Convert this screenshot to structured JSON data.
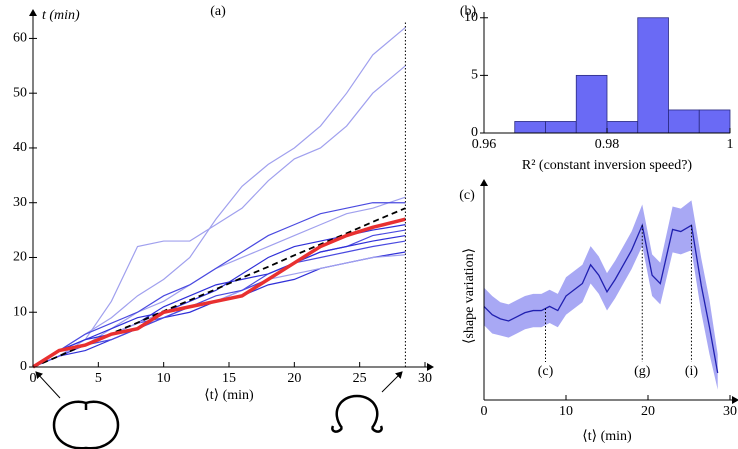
{
  "chart_data": [
    {
      "type": "line",
      "panel_label": "(a)",
      "ylabel": "t (min)",
      "xlabel": "⟨t⟩ (min)",
      "x": [
        0,
        2,
        4,
        6,
        8,
        10,
        12,
        14,
        16,
        18,
        20,
        22,
        24,
        26,
        28.5
      ],
      "series": [
        {
          "color": "#a0a0ee",
          "line_width": 1.2,
          "values": [
            0,
            3,
            6,
            9,
            13,
            16,
            20,
            27,
            33,
            37,
            40,
            44,
            50,
            57,
            62
          ]
        },
        {
          "color": "#a0a0ee",
          "line_width": 1.2,
          "values": [
            0,
            2,
            5,
            12,
            22,
            23,
            23,
            26,
            29,
            34,
            38,
            40,
            44,
            50,
            55
          ]
        },
        {
          "color": "#a0a0ee",
          "line_width": 1.2,
          "values": [
            0,
            2,
            4,
            7,
            10,
            12,
            15,
            18,
            20,
            22,
            24,
            26,
            28,
            29,
            31
          ]
        },
        {
          "color": "#4a4ae0",
          "line_width": 1.2,
          "values": [
            0,
            3,
            6,
            8,
            10,
            13,
            15,
            18,
            21,
            24,
            26,
            28,
            29,
            30,
            30
          ]
        },
        {
          "color": "#3030d8",
          "line_width": 1.2,
          "values": [
            0,
            3,
            5,
            7,
            9,
            10,
            12,
            14,
            17,
            20,
            22,
            23,
            24,
            25,
            26
          ]
        },
        {
          "color": "#4a4ae0",
          "line_width": 1.2,
          "values": [
            0,
            2,
            4,
            6,
            8,
            9,
            11,
            12,
            14,
            17,
            19,
            21,
            22,
            24,
            25
          ]
        },
        {
          "color": "#3030d8",
          "line_width": 1.2,
          "values": [
            0,
            3,
            5,
            6,
            8,
            11,
            13,
            15,
            16,
            17,
            19,
            21,
            22,
            23,
            24
          ]
        },
        {
          "color": "#3030d8",
          "line_width": 1.2,
          "values": [
            0,
            2,
            3,
            5,
            7,
            9,
            10,
            12,
            13,
            15,
            16,
            18,
            19,
            20,
            21
          ]
        },
        {
          "color": "#a0a0ee",
          "line_width": 1.2,
          "values": [
            0,
            2,
            4,
            6,
            8,
            10,
            11,
            12,
            14,
            16,
            17,
            18,
            19,
            20,
            20.5
          ]
        },
        {
          "color": "#4a4ae0",
          "line_width": 1.2,
          "values": [
            0,
            2,
            4,
            5,
            7,
            9,
            11,
            13,
            14,
            16,
            19,
            20,
            21,
            22,
            23
          ]
        },
        {
          "color": "#000000",
          "line_width": 1.8,
          "dashed": true,
          "values": [
            0,
            2,
            4.1,
            6.1,
            8.1,
            10.2,
            12.2,
            14.2,
            16.3,
            18.3,
            20.4,
            22.4,
            24.4,
            26.5,
            29
          ]
        },
        {
          "color": "#e83030",
          "line_width": 3.5,
          "values": [
            0,
            3,
            4,
            6,
            7,
            10,
            11,
            12,
            13,
            16,
            19,
            22,
            24,
            25.5,
            27
          ]
        }
      ],
      "vline": 28.5,
      "xlim": [
        0,
        30
      ],
      "xticks": [
        0,
        5,
        10,
        15,
        20,
        25,
        30
      ],
      "ylim": [
        0,
        63
      ],
      "yticks": [
        0,
        10,
        20,
        30,
        40,
        50,
        60
      ]
    },
    {
      "type": "histogram",
      "panel_label": "(b)",
      "xlabel": "R² (constant inversion speed?)",
      "bins": [
        0.965,
        0.97,
        0.975,
        0.98,
        0.985,
        0.99,
        0.995,
        1.0
      ],
      "values": [
        1,
        1,
        5,
        1,
        10,
        2,
        2
      ],
      "color": "#6a6af5",
      "xlim": [
        0.96,
        1.0
      ],
      "xticks": [
        0.96,
        0.98,
        1
      ],
      "ylim": [
        0,
        10.5
      ],
      "yticks": [
        0,
        5,
        10
      ]
    },
    {
      "type": "band-line",
      "panel_label": "(c)",
      "xlabel": "⟨t⟩ (min)",
      "ylabel": "⟨shape variation⟩",
      "x": [
        0,
        1,
        2,
        3,
        4,
        5,
        6,
        7,
        8,
        9,
        10,
        11,
        12,
        13,
        14,
        15,
        16,
        17,
        18,
        19.3,
        20.5,
        21.5,
        23,
        24,
        25.3,
        26.5,
        27.5,
        28.5
      ],
      "values": [
        45,
        41,
        39,
        38,
        40,
        42,
        43,
        43,
        45,
        43,
        50,
        53,
        56,
        65,
        60,
        52,
        58,
        65,
        72,
        84,
        60,
        56,
        82,
        81,
        84,
        55,
        35,
        13
      ],
      "lower": [
        36,
        32,
        31,
        30,
        32,
        34,
        35,
        35,
        37,
        35,
        41,
        44,
        47,
        56,
        51,
        43,
        49,
        56,
        63,
        74,
        50,
        46,
        71,
        70,
        72,
        42,
        22,
        5
      ],
      "upper": [
        54,
        50,
        47,
        46,
        48,
        50,
        51,
        51,
        53,
        51,
        59,
        62,
        65,
        74,
        69,
        61,
        67,
        74,
        81,
        94,
        70,
        66,
        93,
        92,
        96,
        68,
        48,
        22
      ],
      "color": "#2020b0",
      "band_color": "#a8a8f4",
      "annotations": [
        {
          "text": "(c)",
          "x": 7.5
        },
        {
          "text": "(g)",
          "x": 19.3
        },
        {
          "text": "(i)",
          "x": 25.3
        }
      ],
      "xlim": [
        0,
        30
      ],
      "xticks": [
        0,
        10,
        20,
        30
      ],
      "ylim": [
        0,
        100
      ]
    }
  ]
}
